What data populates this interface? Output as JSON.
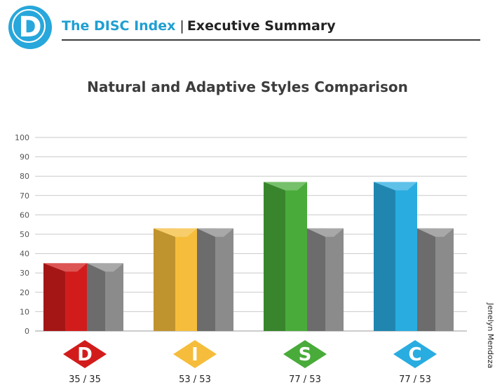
{
  "header": {
    "logo_letter": "D",
    "brand": "The DISC Index",
    "separator": "|",
    "section": "Executive Summary"
  },
  "person_name": "Jenelyn Mendoza",
  "colors": {
    "accent": "#27a7db",
    "D": "#d21c1c",
    "I": "#f5bd3b",
    "S": "#49ab3a",
    "C": "#29ace0",
    "adaptive": "#8b8b8b"
  },
  "chart_data": {
    "type": "bar",
    "title": "Natural and Adaptive Styles Comparison",
    "categories": [
      "D",
      "I",
      "S",
      "C"
    ],
    "series": [
      {
        "values": [
          35,
          53,
          77,
          77
        ]
      },
      {
        "values": [
          35,
          53,
          53,
          53
        ]
      }
    ],
    "ylim": [
      0,
      100
    ],
    "yticks": [
      0,
      10,
      20,
      30,
      40,
      50,
      60,
      70,
      80,
      90,
      100
    ],
    "value_labels": [
      "35 / 35",
      "53 / 53",
      "77 / 53",
      "77 / 53"
    ],
    "grid": true
  }
}
